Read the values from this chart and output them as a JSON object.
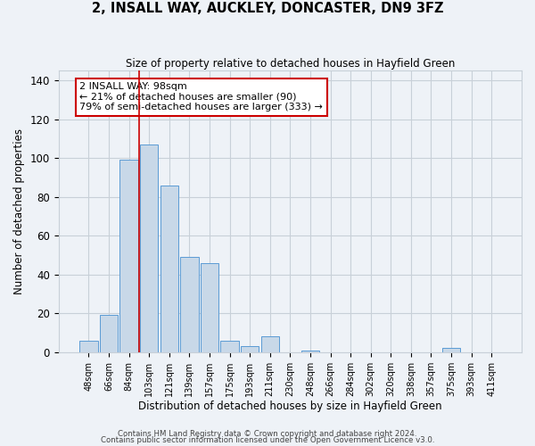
{
  "title": "2, INSALL WAY, AUCKLEY, DONCASTER, DN9 3FZ",
  "subtitle": "Size of property relative to detached houses in Hayfield Green",
  "xlabel": "Distribution of detached houses by size in Hayfield Green",
  "ylabel": "Number of detached properties",
  "categories": [
    "48sqm",
    "66sqm",
    "84sqm",
    "103sqm",
    "121sqm",
    "139sqm",
    "157sqm",
    "175sqm",
    "193sqm",
    "211sqm",
    "230sqm",
    "248sqm",
    "266sqm",
    "284sqm",
    "302sqm",
    "320sqm",
    "338sqm",
    "357sqm",
    "375sqm",
    "393sqm",
    "411sqm"
  ],
  "values": [
    6,
    19,
    99,
    107,
    86,
    49,
    46,
    6,
    3,
    8,
    0,
    1,
    0,
    0,
    0,
    0,
    0,
    0,
    2,
    0,
    0
  ],
  "bar_color": "#c8d8e8",
  "bar_edge_color": "#5b9bd5",
  "grid_color": "#c8d0d8",
  "background_color": "#eef2f7",
  "red_line_x": 2.5,
  "annotation_text": "2 INSALL WAY: 98sqm\n← 21% of detached houses are smaller (90)\n79% of semi-detached houses are larger (333) →",
  "annotation_box_color": "#ffffff",
  "annotation_box_edge": "#cc0000",
  "ylim": [
    0,
    145
  ],
  "yticks": [
    0,
    20,
    40,
    60,
    80,
    100,
    120,
    140
  ],
  "footer1": "Contains HM Land Registry data © Crown copyright and database right 2024.",
  "footer2": "Contains public sector information licensed under the Open Government Licence v3.0."
}
